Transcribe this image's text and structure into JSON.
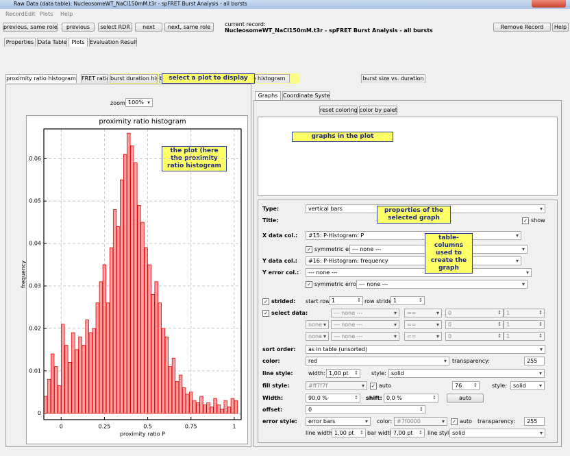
{
  "window": {
    "title": "Raw Data (data table): NucleosomeWT_NaCl150mM.t3r - spFRET Burst Analysis - all bursts"
  },
  "menu": [
    "Record",
    "Edit",
    "Plots",
    "Help"
  ],
  "toolbar": {
    "buttons": [
      "previous, same role",
      "previous",
      "select RDR",
      "next",
      "next, same role"
    ],
    "current_record_label": "current record:",
    "current_record": "NucleosomeWT_NaCl150mM.t3r - spFRET Burst Analysis - all bursts",
    "remove": "Remove Record",
    "help": "Help"
  },
  "tabs": [
    "Properties",
    "Data Table",
    "Plots",
    "Evaluation Results"
  ],
  "plot_tabs": [
    "proximity ratio histogram",
    "FRET ratio histogram",
    "burst duration histogram",
    "burst size histogram",
    "burst countrate histogram",
    "burst size vs. duration"
  ],
  "zoom": {
    "label": "zoom:",
    "value": "100%"
  },
  "chart_data": {
    "type": "histogram",
    "title": "proximity ratio histogram",
    "x_label": "proximity ratio P",
    "y_label": "frequency",
    "color": "#ff9f9f",
    "edge_color": "#e00000",
    "grid": true,
    "bins": [
      -0.1,
      -0.08,
      -0.06,
      -0.04,
      -0.02,
      0,
      0.02,
      0.04,
      0.06,
      0.08,
      0.1,
      0.12,
      0.14,
      0.16,
      0.18,
      0.2,
      0.22,
      0.24,
      0.26,
      0.28,
      0.3,
      0.32,
      0.34,
      0.36,
      0.38,
      0.4,
      0.42,
      0.44,
      0.46,
      0.48,
      0.5,
      0.52,
      0.54,
      0.56,
      0.58,
      0.6,
      0.62,
      0.64,
      0.66,
      0.68,
      0.7,
      0.72,
      0.74,
      0.76,
      0.78,
      0.8,
      0.82,
      0.84,
      0.86,
      0.88,
      0.9,
      0.92,
      0.94,
      0.96,
      0.98,
      1,
      1.02
    ],
    "values": [
      0.004,
      0.008,
      0.014,
      0.011,
      0.0065,
      0.021,
      0.016,
      0.012,
      0.019,
      0.015,
      0.018,
      0.016,
      0.022,
      0.019,
      0.02,
      0.026,
      0.031,
      0.035,
      0.026,
      0.039,
      0.048,
      0.044,
      0.055,
      0.061,
      0.066,
      0.063,
      0.059,
      0.049,
      0.045,
      0.039,
      0.035,
      0.028,
      0.031,
      0.026,
      0.02,
      0.018,
      0.011,
      0.013,
      0.0075,
      0.009,
      0.006,
      0.0045,
      0.005,
      0.003,
      0.0025,
      0.004,
      0.002,
      0.0025,
      0.0015,
      0.0035,
      0.002,
      0.001,
      0.003,
      0.0015,
      0.0035,
      0.003
    ],
    "xlim": [
      -0.1,
      1.04
    ],
    "ylim": [
      -0.0015,
      0.067
    ],
    "xticks": [
      0,
      0.25,
      0.5,
      0.75,
      1
    ],
    "yticks": [
      0,
      0.01,
      0.02,
      0.03,
      0.04,
      0.05,
      0.06
    ]
  },
  "graphs_panel": {
    "tabs": [
      "Graphs",
      "Coordinate System"
    ],
    "buttons": [
      "reset coloring",
      "color by palette"
    ]
  },
  "properties": {
    "type_label": "Type:",
    "type": "vertical bars",
    "title_label": "Title:",
    "show": "show",
    "x_label": "X data col.:",
    "x_col": "#15: P-Histogram: P",
    "sym1": "symmetric errors",
    "x_err": "--- none ---",
    "y_label": "Y data col.:",
    "y_col": "#16: P-Histogram: frequency",
    "yerr_label": "Y error col.:",
    "y_err": "--- none ---",
    "sym2": "symmetric errors",
    "y_err2": "--- none ---",
    "strided_label": "strided:",
    "start_row_label": "start row:",
    "start_row": "1",
    "row_stride_label": "row stride:",
    "row_stride": "1",
    "select_label": "select data:",
    "select_rows": [
      [
        "--- none ---",
        "==",
        "0",
        "1"
      ],
      [
        "none",
        "--- none ---",
        "==",
        "0",
        "1"
      ],
      [
        "none",
        "--- none ---",
        "==",
        "0",
        "1"
      ]
    ],
    "sort_label": "sort order:",
    "sort": "as in table (unsorted)",
    "color_label": "color:",
    "color": "red",
    "transparency_label": "transparency:",
    "transparency": "255",
    "line_label": "line style:",
    "width_label": "width:",
    "line_width": "1,00 pt",
    "style_label": "style:",
    "line_style": "solid",
    "fill_label": "fill style:",
    "fill_color": "#ff7f7f",
    "fill_auto": "auto",
    "fill_value": "76",
    "fill_style_label": "style:",
    "fill_style": "solid",
    "bar_width_label": "Width:",
    "bar_width": "90,0 %",
    "shift_label": "shift:",
    "shift": "0,0 %",
    "auto": "auto",
    "offset_label": "offset:",
    "offset": "0",
    "error_label": "error style:",
    "error": "error bars",
    "error_color_label": "color:",
    "error_color": "#7f0000",
    "error_auto": "auto",
    "error_transparency_label": "transparency:",
    "error_transparency": "255",
    "lw_label": "line width:",
    "lw": "1,00 pt",
    "bw_label": "bar width:",
    "bw": "7,00 pt",
    "ls_label": "line style:",
    "ls": "solid"
  },
  "annotations": {
    "plot": "the plot (here the proximity ratio histogram",
    "select": "select a plot to display",
    "graphs": "graphs in the plot",
    "properties": "properties of the selected graph",
    "columns": "table-columns used to create the graph"
  }
}
